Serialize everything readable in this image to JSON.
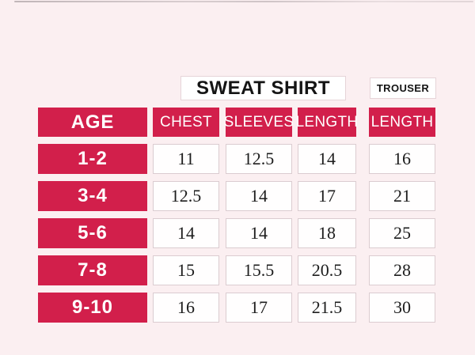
{
  "colors": {
    "accent": "#d21f4b",
    "background": "#fbeff1",
    "cell_background": "#ffffff",
    "cell_border": "#dbccd0",
    "header_text": "#ffffff",
    "title_text": "#141414",
    "value_text": "#1d1d1d"
  },
  "chart_data": {
    "type": "table",
    "column_groups": [
      {
        "label": "SWEAT SHIRT",
        "columns": [
          "CHEST",
          "SLEEVES",
          "LENGTH"
        ]
      },
      {
        "label": "TROUSER",
        "columns": [
          "LENGTH"
        ]
      }
    ],
    "columns": [
      "AGE",
      "CHEST",
      "SLEEVES",
      "LENGTH",
      "LENGTH"
    ],
    "rows": [
      {
        "age": "1-2",
        "values": [
          "11",
          "12.5",
          "14",
          "16"
        ]
      },
      {
        "age": "3-4",
        "values": [
          "12.5",
          "14",
          "17",
          "21"
        ]
      },
      {
        "age": "5-6",
        "values": [
          "14",
          "14",
          "18",
          "25"
        ]
      },
      {
        "age": "7-8",
        "values": [
          "15",
          "15.5",
          "20.5",
          "28"
        ]
      },
      {
        "age": "9-10",
        "values": [
          "16",
          "17",
          "21.5",
          "30"
        ]
      }
    ]
  }
}
